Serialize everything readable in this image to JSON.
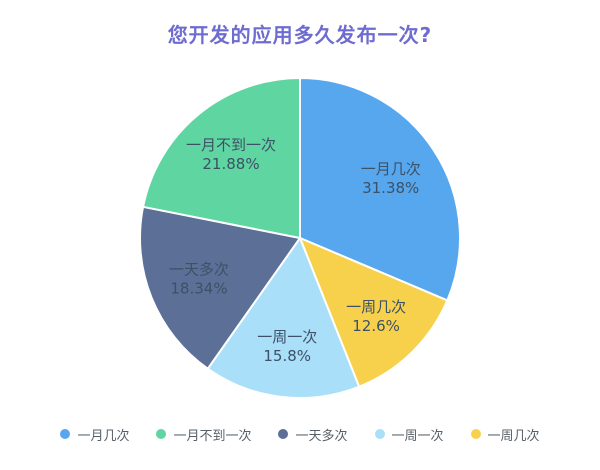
{
  "title": "您开发的应用多久发布一次?",
  "title_color": "#6F6CD1",
  "chart_data": {
    "type": "pie",
    "title": "您开发的应用多久发布一次?",
    "direction": "clockwise",
    "start_angle": "top",
    "label_color": "#3D5166",
    "slices": [
      {
        "label": "一月几次",
        "value": 31.38,
        "display": "31.38%",
        "color": "#57A7EF"
      },
      {
        "label": "一周几次",
        "value": 12.6,
        "display": "12.6%",
        "color": "#F8D14C"
      },
      {
        "label": "一周一次",
        "value": 15.8,
        "display": "15.8%",
        "color": "#AADFF9"
      },
      {
        "label": "一天多次",
        "value": 18.34,
        "display": "18.34%",
        "color": "#5C6F97"
      },
      {
        "label": "一月不到一次",
        "value": 21.88,
        "display": "21.88%",
        "color": "#5FD5A2"
      }
    ],
    "legend": [
      "一月几次",
      "一月不到一次",
      "一天多次",
      "一周一次",
      "一周几次"
    ],
    "legend_position": "bottom"
  }
}
